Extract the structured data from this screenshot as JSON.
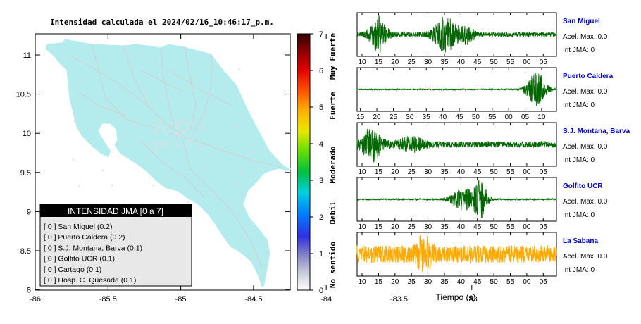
{
  "map": {
    "title": "Intensidad calculada el 2024/02/16_10:46:17_p.m.",
    "lon_ticks": [
      "-86",
      "-85.5",
      "-85",
      "-84.5",
      "-84",
      "-83.5",
      "-83"
    ],
    "lat_ticks": [
      "11",
      "10.5",
      "10",
      "9.5",
      "9",
      "8.5",
      "8"
    ],
    "land_color": "#b4ecee",
    "legend": {
      "title": "INTENSIDAD JMA [0 a 7]",
      "items": [
        "[ 0 ]  San Miguel (0.2)",
        "[ 0 ]  Puerto Caldera (0.2)",
        "[ 0 ]  S.J. Montana, Barva (0.1)",
        "[ 0 ]  Golfito UCR (0.1)",
        "[ 0 ]  Cartago (0.1)",
        "[ 0 ]  Hosp. C. Quesada (0.1)"
      ]
    }
  },
  "colorbar": {
    "ticks": [
      "7",
      "6",
      "5",
      "4",
      "3",
      "2",
      "1",
      "0"
    ],
    "labels": [
      "Muy Fuerte",
      "Fuerte",
      "Moderado",
      "Debil",
      "No sentido"
    ]
  },
  "chart_data": {
    "type": "line",
    "xlabel": "Tiempo (s)",
    "time_ticks": [
      "10",
      "15",
      "20",
      "25",
      "30",
      "35",
      "40",
      "45",
      "50",
      "55",
      "00",
      "05"
    ],
    "time_ticks_caldera": [
      "15",
      "20",
      "25",
      "30",
      "35",
      "40",
      "45",
      "50",
      "55",
      "00",
      "05",
      "10"
    ],
    "series": [
      {
        "name": "San Miguel",
        "accel_label": "Acel. Max. 0.0",
        "int_label": "Int JMA: 0",
        "color": "#006600",
        "bursts": [
          [
            15,
            2.5,
            0.85
          ],
          [
            35.5,
            3.5,
            0.9
          ],
          [
            42,
            2,
            0.4
          ]
        ],
        "noise": 0.12
      },
      {
        "name": "Puerto Caldera",
        "accel_label": "Acel. Max. 0.0",
        "int_label": "Int JMA: 0",
        "color": "#006600",
        "bursts": [
          [
            63,
            3,
            0.85
          ]
        ],
        "noise": 0.03
      },
      {
        "name": "S.J. Montana, Barva",
        "accel_label": "Acel. Max. 0.0",
        "int_label": "Int JMA: 0",
        "color": "#006600",
        "bursts": [
          [
            13,
            3,
            0.8
          ],
          [
            25,
            4,
            0.3
          ]
        ],
        "noise": 0.15
      },
      {
        "name": "Golfito UCR",
        "accel_label": "Acel. Max. 0.0",
        "int_label": "Int JMA: 0",
        "color": "#006600",
        "bursts": [
          [
            41,
            4,
            0.55
          ],
          [
            46,
            2,
            0.9
          ]
        ],
        "noise": 0.04
      },
      {
        "name": "La Sabana",
        "accel_label": "Acel. Max. 0.0",
        "int_label": "Int JMA: 0",
        "color": "#ffaa00",
        "bursts": [
          [
            29,
            2,
            0.9
          ]
        ],
        "noise": 0.45
      }
    ]
  }
}
